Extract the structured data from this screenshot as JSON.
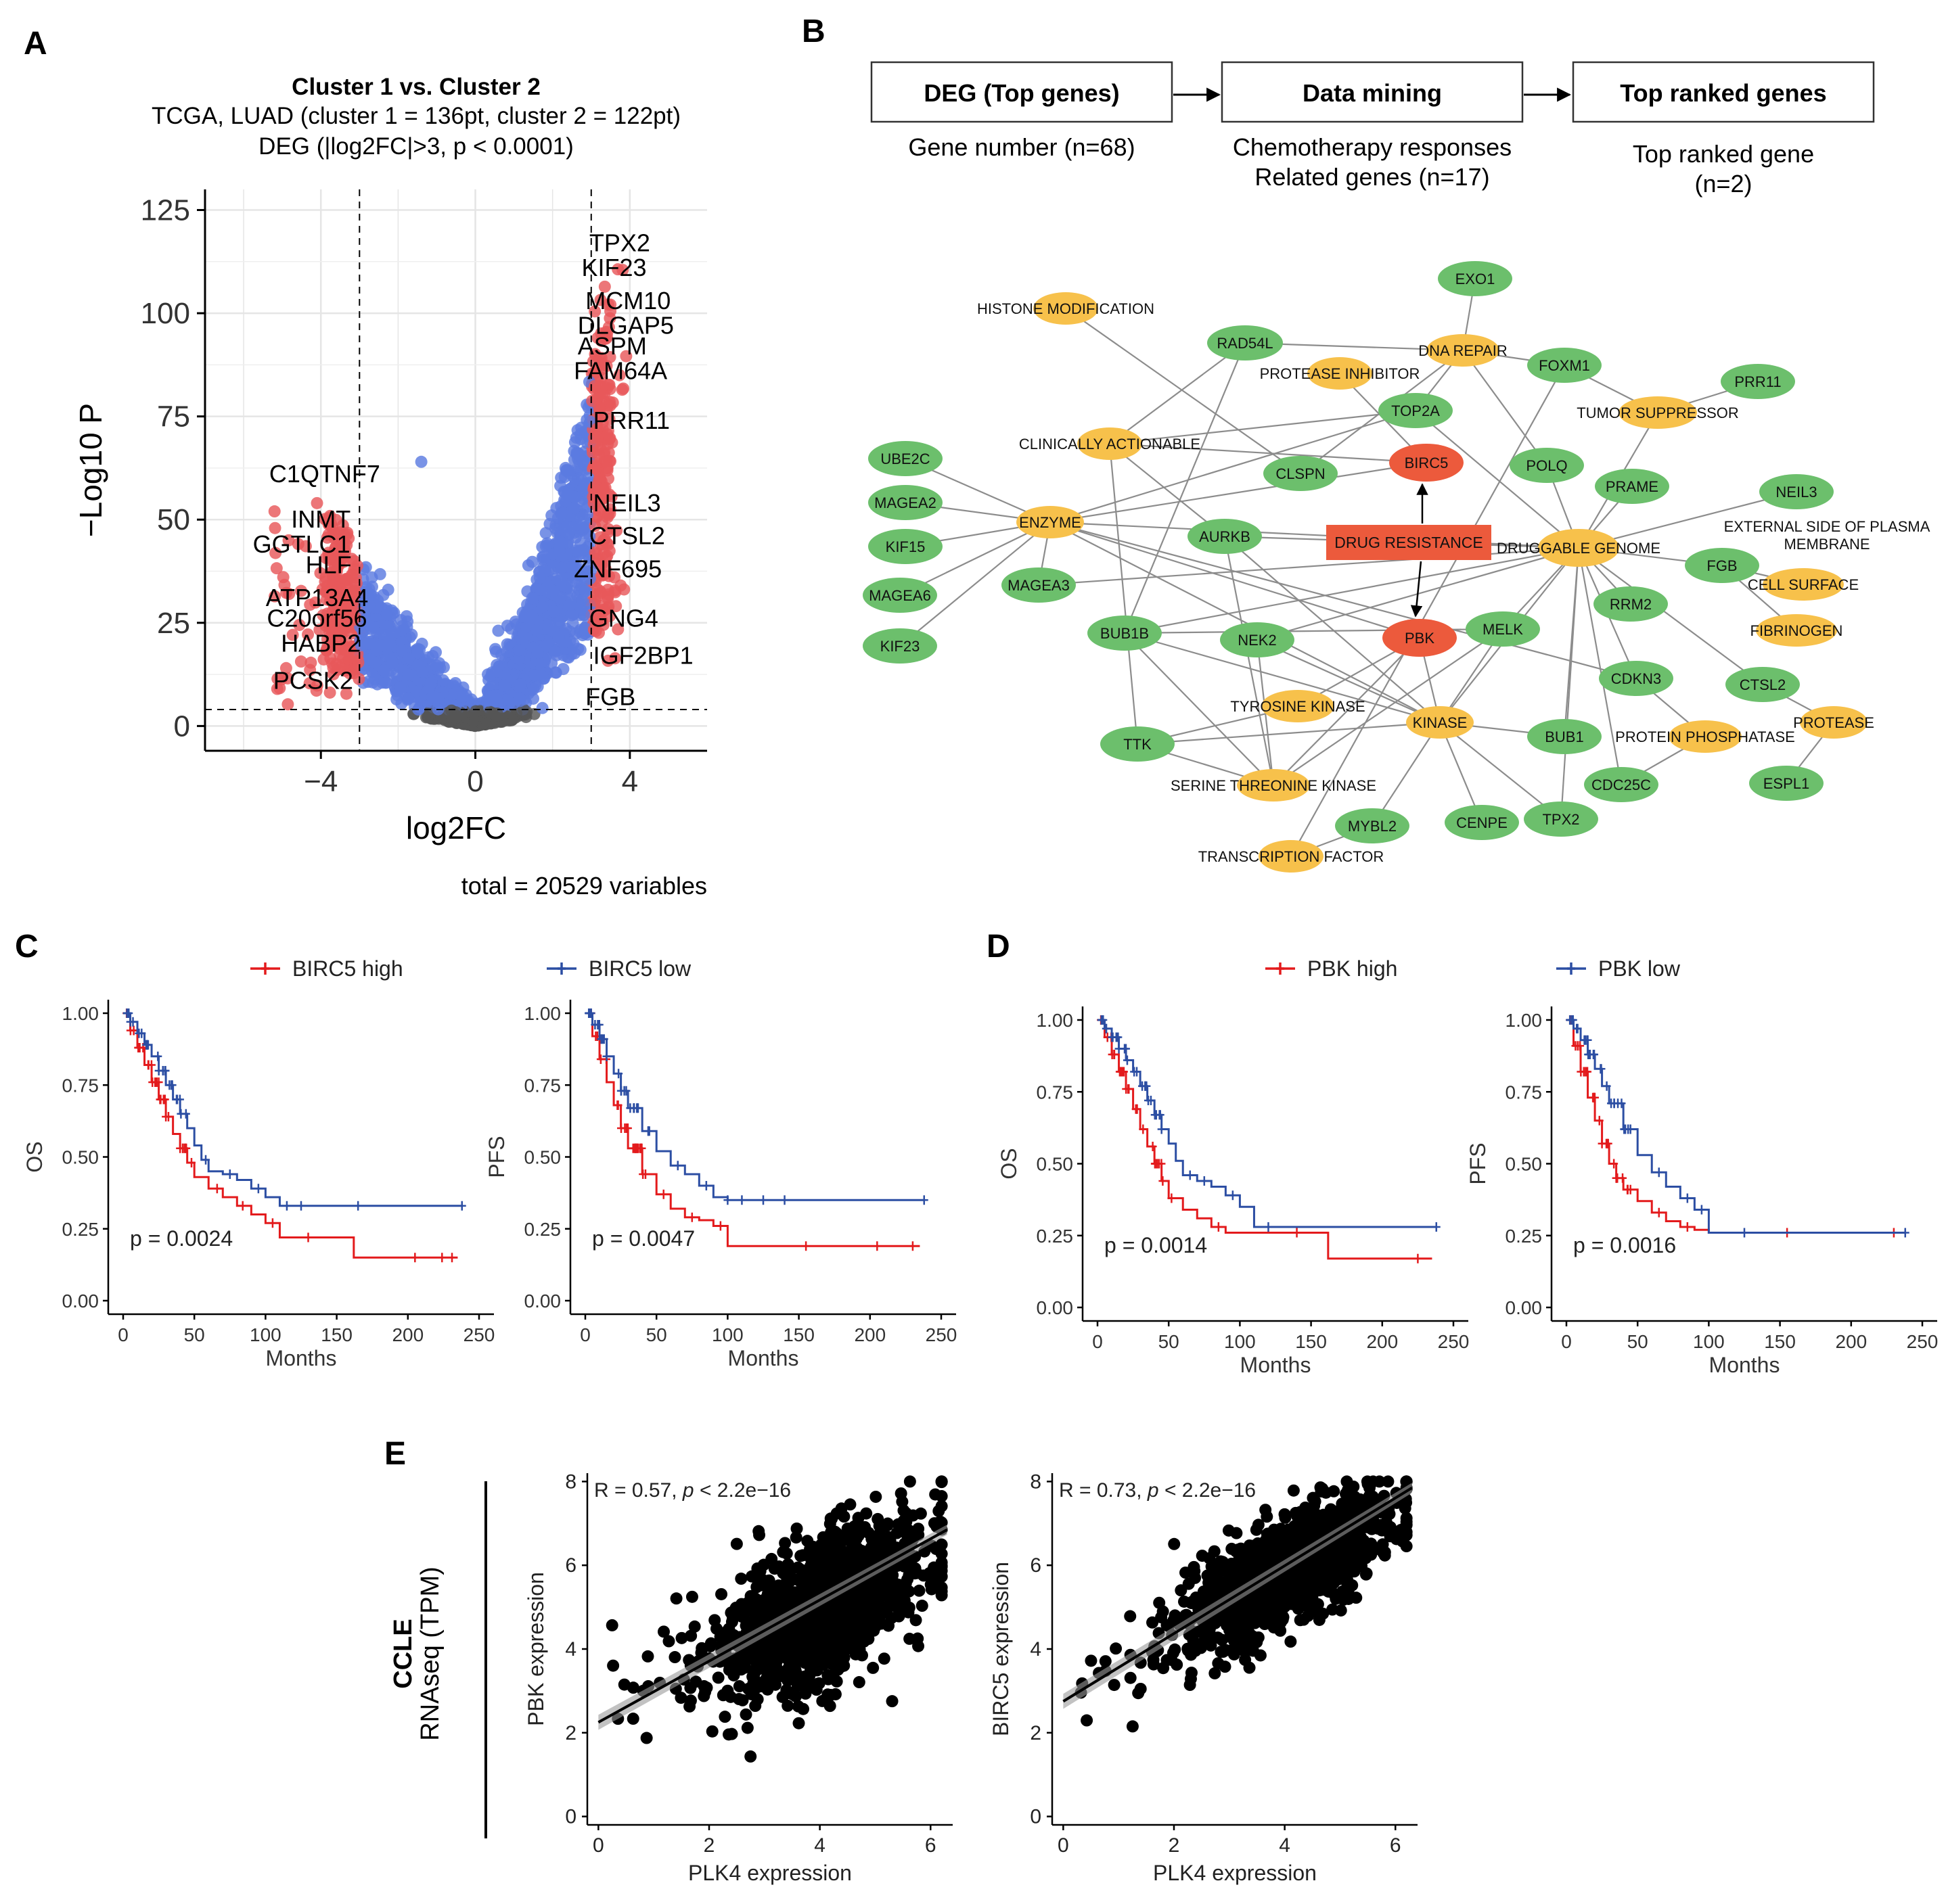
{
  "panels": {
    "A": "A",
    "B": "B",
    "C": "C",
    "D": "D",
    "E": "E"
  },
  "colors": {
    "red": "#e31a1c",
    "blue": "#2c4ea3",
    "volcano_blue": "#5b7be0",
    "volcano_red": "#e8585a",
    "green": "#6cbf6c",
    "orange": "#f7c14b",
    "drug_red": "#ec5a3c",
    "gray": "#8c8c8c"
  },
  "panel_b": {
    "flow": [
      {
        "title": "DEG (Top genes)",
        "sub": [
          "Gene number (n=68)"
        ]
      },
      {
        "title": "Data mining",
        "sub": [
          "Chemotherapy responses",
          "Related genes (n=17)"
        ]
      },
      {
        "title": "Top ranked genes",
        "sub": [
          "Top ranked gene",
          "(n=2)"
        ]
      }
    ],
    "center_label": "DRUG RESISTANCE",
    "nodes": [
      {
        "label": "EXO1",
        "type": "gene"
      },
      {
        "label": "HISTONE MODIFICATION",
        "type": "category"
      },
      {
        "label": "RAD54L",
        "type": "gene"
      },
      {
        "label": "DNA REPAIR",
        "type": "category"
      },
      {
        "label": "FOXM1",
        "type": "gene"
      },
      {
        "label": "PRR11",
        "type": "gene"
      },
      {
        "label": "PROTEASE INHIBITOR",
        "type": "category"
      },
      {
        "label": "TOP2A",
        "type": "gene"
      },
      {
        "label": "TUMOR SUPPRESSOR",
        "type": "category"
      },
      {
        "label": "CLINICALLY ACTIONABLE",
        "type": "category"
      },
      {
        "label": "UBE2C",
        "type": "gene"
      },
      {
        "label": "BIRC5",
        "type": "top"
      },
      {
        "label": "CLSPN",
        "type": "gene"
      },
      {
        "label": "POLQ",
        "type": "gene"
      },
      {
        "label": "PRAME",
        "type": "gene"
      },
      {
        "label": "MAGEA2",
        "type": "gene"
      },
      {
        "label": "NEIL3",
        "type": "gene"
      },
      {
        "label": "ENZYME",
        "type": "category"
      },
      {
        "label": "EXTERNAL SIDE OF PLASMA",
        "type": "category"
      },
      {
        "label": "MEMBRANE",
        "type": "category"
      },
      {
        "label": "KIF15",
        "type": "gene"
      },
      {
        "label": "AURKB",
        "type": "gene"
      },
      {
        "label": "DRUGGABLE GENOME",
        "type": "category"
      },
      {
        "label": "FGB",
        "type": "gene"
      },
      {
        "label": "MAGEA3",
        "type": "gene"
      },
      {
        "label": "CELL SURFACE",
        "type": "category"
      },
      {
        "label": "MAGEA6",
        "type": "gene"
      },
      {
        "label": "RRM2",
        "type": "gene"
      },
      {
        "label": "BUB1B",
        "type": "gene"
      },
      {
        "label": "MELK",
        "type": "gene"
      },
      {
        "label": "FIBRINOGEN",
        "type": "category"
      },
      {
        "label": "NEK2",
        "type": "gene"
      },
      {
        "label": "PBK",
        "type": "top"
      },
      {
        "label": "KIF23",
        "type": "gene"
      },
      {
        "label": "CDKN3",
        "type": "gene"
      },
      {
        "label": "CTSL2",
        "type": "gene"
      },
      {
        "label": "TYROSINE KINASE",
        "type": "category"
      },
      {
        "label": "KINASE",
        "type": "category"
      },
      {
        "label": "PROTEASE",
        "type": "category"
      },
      {
        "label": "TTK",
        "type": "gene"
      },
      {
        "label": "BUB1",
        "type": "gene"
      },
      {
        "label": "PROTEIN PHOSPHATASE",
        "type": "category"
      },
      {
        "label": "ESPL1",
        "type": "gene"
      },
      {
        "label": "SERINE THREONINE KINASE",
        "type": "category"
      },
      {
        "label": "CDC25C",
        "type": "gene"
      },
      {
        "label": "TPX2",
        "type": "gene"
      },
      {
        "label": "MYBL2",
        "type": "gene"
      },
      {
        "label": "CENPE",
        "type": "gene"
      },
      {
        "label": "TRANSCRIPTION FACTOR",
        "type": "category"
      }
    ]
  },
  "chart_data": [
    {
      "id": "A",
      "type": "scatter",
      "title": "Cluster 1 vs. Cluster 2",
      "subtitle1": "TCGA, LUAD (cluster 1 = 136pt, cluster 2 = 122pt)",
      "subtitle2": "DEG (|log2FC|>3, p < 0.0001)",
      "xlabel": "log2FC",
      "ylabel": "−Log10 P",
      "caption": "total = 20529 variables",
      "xlim": [
        -7,
        6
      ],
      "ylim": [
        -6,
        130
      ],
      "xticks": [
        "−4",
        "0",
        "4"
      ],
      "yticks": [
        "0",
        "25",
        "50",
        "75",
        "100",
        "125"
      ],
      "thresholds": {
        "fc": 3,
        "p": 4
      },
      "labels": [
        {
          "gene": "TPX2",
          "x": 3.2,
          "y": 117
        },
        {
          "gene": "KIF23",
          "x": 3.0,
          "y": 111
        },
        {
          "gene": "MCM10",
          "x": 3.1,
          "y": 103
        },
        {
          "gene": "DLGAP5",
          "x": 2.9,
          "y": 97
        },
        {
          "gene": "ASPM",
          "x": 2.9,
          "y": 92
        },
        {
          "gene": "FAM64A",
          "x": 2.8,
          "y": 86
        },
        {
          "gene": "PRR11",
          "x": 3.3,
          "y": 74
        },
        {
          "gene": "C1QTNF7",
          "x": -3.9,
          "y": 61
        },
        {
          "gene": "NEIL3",
          "x": 3.3,
          "y": 54
        },
        {
          "gene": "INMT",
          "x": -4.0,
          "y": 50
        },
        {
          "gene": "GGTLC1",
          "x": -4.5,
          "y": 44
        },
        {
          "gene": "CTSL2",
          "x": 3.2,
          "y": 46
        },
        {
          "gene": "HLF",
          "x": -3.8,
          "y": 39
        },
        {
          "gene": "ZNF695",
          "x": 2.8,
          "y": 38
        },
        {
          "gene": "ATP13A4",
          "x": -4.1,
          "y": 31
        },
        {
          "gene": "C20orf56",
          "x": -4.1,
          "y": 26
        },
        {
          "gene": "GNG4",
          "x": 3.2,
          "y": 26
        },
        {
          "gene": "HABP2",
          "x": -4.0,
          "y": 20
        },
        {
          "gene": "IGF2BP1",
          "x": 3.3,
          "y": 17
        },
        {
          "gene": "PCSK2",
          "x": -4.2,
          "y": 11
        },
        {
          "gene": "FGB",
          "x": 3.1,
          "y": 7
        }
      ]
    },
    {
      "id": "C-OS",
      "type": "line",
      "ylabel": "OS",
      "xlabel": "Months",
      "p": "p = 0.0024",
      "legend": [
        "BIRC5 high",
        "BIRC5 low"
      ],
      "xlim": [
        0,
        250
      ],
      "ylim": [
        0,
        1
      ],
      "xticks": [
        "0",
        "50",
        "100",
        "150",
        "200",
        "250"
      ],
      "yticks": [
        "0.00",
        "0.25",
        "0.50",
        "0.75",
        "1.00"
      ],
      "series": [
        {
          "name": "BIRC5 high",
          "x": [
            0,
            5,
            10,
            15,
            20,
            25,
            30,
            35,
            40,
            45,
            50,
            60,
            70,
            80,
            90,
            100,
            110,
            120,
            140,
            162,
            180,
            200,
            220,
            235
          ],
          "y": [
            1.0,
            0.94,
            0.88,
            0.82,
            0.76,
            0.7,
            0.64,
            0.58,
            0.53,
            0.48,
            0.43,
            0.39,
            0.36,
            0.33,
            0.3,
            0.27,
            0.22,
            0.22,
            0.22,
            0.15,
            0.15,
            0.15,
            0.15,
            0.15
          ],
          "censor": [
            30,
            40,
            48,
            66,
            84,
            105,
            130,
            205,
            224,
            231
          ]
        },
        {
          "name": "BIRC5 low",
          "x": [
            0,
            5,
            10,
            15,
            20,
            25,
            30,
            35,
            40,
            45,
            50,
            55,
            60,
            70,
            80,
            90,
            100,
            110,
            130,
            160,
            200,
            238
          ],
          "y": [
            1.0,
            0.97,
            0.93,
            0.89,
            0.85,
            0.8,
            0.75,
            0.7,
            0.65,
            0.6,
            0.54,
            0.49,
            0.45,
            0.44,
            0.42,
            0.39,
            0.36,
            0.33,
            0.33,
            0.33,
            0.33,
            0.33
          ],
          "censor": [
            38,
            58,
            75,
            95,
            115,
            125,
            165,
            238
          ]
        }
      ]
    },
    {
      "id": "C-PFS",
      "type": "line",
      "ylabel": "PFS",
      "xlabel": "Months",
      "p": "p = 0.0047",
      "legend": [
        "BIRC5 high",
        "BIRC5 low"
      ],
      "xlim": [
        0,
        250
      ],
      "ylim": [
        0,
        1
      ],
      "xticks": [
        "0",
        "50",
        "100",
        "150",
        "200",
        "250"
      ],
      "yticks": [
        "0.00",
        "0.25",
        "0.50",
        "0.75",
        "1.00"
      ],
      "series": [
        {
          "name": "BIRC5 high",
          "x": [
            0,
            5,
            10,
            15,
            20,
            25,
            30,
            40,
            50,
            60,
            70,
            80,
            90,
            100,
            120,
            150,
            200,
            235
          ],
          "y": [
            1.0,
            0.92,
            0.84,
            0.76,
            0.68,
            0.6,
            0.53,
            0.44,
            0.37,
            0.32,
            0.29,
            0.28,
            0.26,
            0.19,
            0.19,
            0.19,
            0.19,
            0.19
          ],
          "censor": [
            35,
            55,
            75,
            95,
            155,
            205,
            230
          ]
        },
        {
          "name": "BIRC5 low",
          "x": [
            0,
            5,
            10,
            15,
            20,
            25,
            30,
            40,
            50,
            60,
            70,
            80,
            90,
            100,
            130,
            160,
            200,
            238
          ],
          "y": [
            1.0,
            0.96,
            0.91,
            0.85,
            0.79,
            0.73,
            0.67,
            0.59,
            0.52,
            0.47,
            0.44,
            0.4,
            0.36,
            0.35,
            0.35,
            0.35,
            0.35,
            0.35
          ],
          "censor": [
            45,
            65,
            85,
            100,
            110,
            125,
            140,
            238
          ]
        }
      ]
    },
    {
      "id": "D-OS",
      "type": "line",
      "ylabel": "OS",
      "xlabel": "Months",
      "p": "p = 0.0014",
      "legend": [
        "PBK high",
        "PBK low"
      ],
      "xlim": [
        0,
        250
      ],
      "ylim": [
        0,
        1
      ],
      "xticks": [
        "0",
        "50",
        "100",
        "150",
        "200",
        "250"
      ],
      "yticks": [
        "0.00",
        "0.25",
        "0.50",
        "0.75",
        "1.00"
      ],
      "series": [
        {
          "name": "PBK high",
          "x": [
            0,
            5,
            10,
            15,
            20,
            25,
            30,
            35,
            40,
            45,
            50,
            60,
            70,
            80,
            90,
            100,
            120,
            162,
            200,
            235
          ],
          "y": [
            1.0,
            0.94,
            0.88,
            0.82,
            0.76,
            0.69,
            0.62,
            0.56,
            0.5,
            0.44,
            0.38,
            0.34,
            0.31,
            0.28,
            0.26,
            0.26,
            0.26,
            0.17,
            0.17,
            0.17
          ],
          "censor": [
            22,
            32,
            42,
            52,
            85,
            140,
            225
          ]
        },
        {
          "name": "PBK low",
          "x": [
            0,
            5,
            10,
            15,
            20,
            25,
            30,
            35,
            40,
            45,
            50,
            55,
            60,
            70,
            80,
            90,
            100,
            110,
            130,
            160,
            200,
            238
          ],
          "y": [
            1.0,
            0.97,
            0.94,
            0.9,
            0.86,
            0.82,
            0.77,
            0.72,
            0.67,
            0.62,
            0.57,
            0.51,
            0.46,
            0.44,
            0.42,
            0.39,
            0.35,
            0.28,
            0.28,
            0.28,
            0.28,
            0.28
          ],
          "censor": [
            45,
            65,
            75,
            95,
            120,
            238
          ]
        }
      ]
    },
    {
      "id": "D-PFS",
      "type": "line",
      "ylabel": "PFS",
      "xlabel": "Months",
      "p": "p = 0.0016",
      "legend": [
        "PBK high",
        "PBK low"
      ],
      "xlim": [
        0,
        250
      ],
      "ylim": [
        0,
        1
      ],
      "xticks": [
        "0",
        "50",
        "100",
        "150",
        "200",
        "250"
      ],
      "yticks": [
        "0.00",
        "0.25",
        "0.50",
        "0.75",
        "1.00"
      ],
      "series": [
        {
          "name": "PBK high",
          "x": [
            0,
            5,
            10,
            15,
            20,
            25,
            30,
            35,
            40,
            50,
            60,
            70,
            80,
            90,
            100,
            120,
            150,
            200,
            235
          ],
          "y": [
            1.0,
            0.91,
            0.82,
            0.73,
            0.65,
            0.57,
            0.5,
            0.45,
            0.41,
            0.37,
            0.33,
            0.3,
            0.28,
            0.27,
            0.26,
            0.26,
            0.26,
            0.26,
            0.26
          ],
          "censor": [
            25,
            35,
            45,
            65,
            85,
            155,
            230
          ]
        },
        {
          "name": "PBK low",
          "x": [
            0,
            5,
            10,
            15,
            20,
            25,
            30,
            40,
            50,
            60,
            70,
            80,
            90,
            100,
            130,
            160,
            200,
            238
          ],
          "y": [
            1.0,
            0.97,
            0.93,
            0.88,
            0.83,
            0.77,
            0.71,
            0.62,
            0.53,
            0.47,
            0.42,
            0.38,
            0.34,
            0.26,
            0.26,
            0.26,
            0.26,
            0.26
          ],
          "censor": [
            45,
            65,
            85,
            95,
            125,
            238
          ]
        }
      ]
    },
    {
      "id": "E-1",
      "type": "scatter",
      "xlabel": "PLK4 expression",
      "ylabel": "PBK expression",
      "stat_prefix": "R = 0.57, ",
      "stat_p": "p",
      "stat_suffix": " < 2.2e−16",
      "xlim": [
        -0.2,
        6.4
      ],
      "ylim": [
        -0.2,
        8.2
      ],
      "xticks": [
        "0",
        "2",
        "4",
        "6"
      ],
      "yticks": [
        "0",
        "2",
        "4",
        "6",
        "8"
      ],
      "r": 0.57,
      "fit": {
        "x": [
          0.0,
          6.3
        ],
        "y": [
          2.25,
          6.85
        ]
      },
      "center": [
        4.1,
        5.0
      ],
      "spread": [
        0.9,
        1.0
      ],
      "n": 1300
    },
    {
      "id": "E-2",
      "type": "scatter",
      "xlabel": "PLK4 expression",
      "ylabel": "BIRC5 expression",
      "stat_prefix": "R = 0.73, ",
      "stat_p": "p",
      "stat_suffix": " < 2.2e−16",
      "xlim": [
        -0.2,
        6.4
      ],
      "ylim": [
        -0.2,
        8.2
      ],
      "xticks": [
        "0",
        "2",
        "4",
        "6"
      ],
      "yticks": [
        "0",
        "2",
        "4",
        "6",
        "8"
      ],
      "r": 0.73,
      "fit": {
        "x": [
          0.0,
          6.3
        ],
        "y": [
          2.75,
          7.85
        ]
      },
      "center": [
        4.1,
        5.9
      ],
      "spread": [
        0.9,
        0.85
      ],
      "n": 1300
    }
  ],
  "panel_e": {
    "side_bold": "CCLE",
    "side_normal": "RNAseq (TPM)"
  }
}
